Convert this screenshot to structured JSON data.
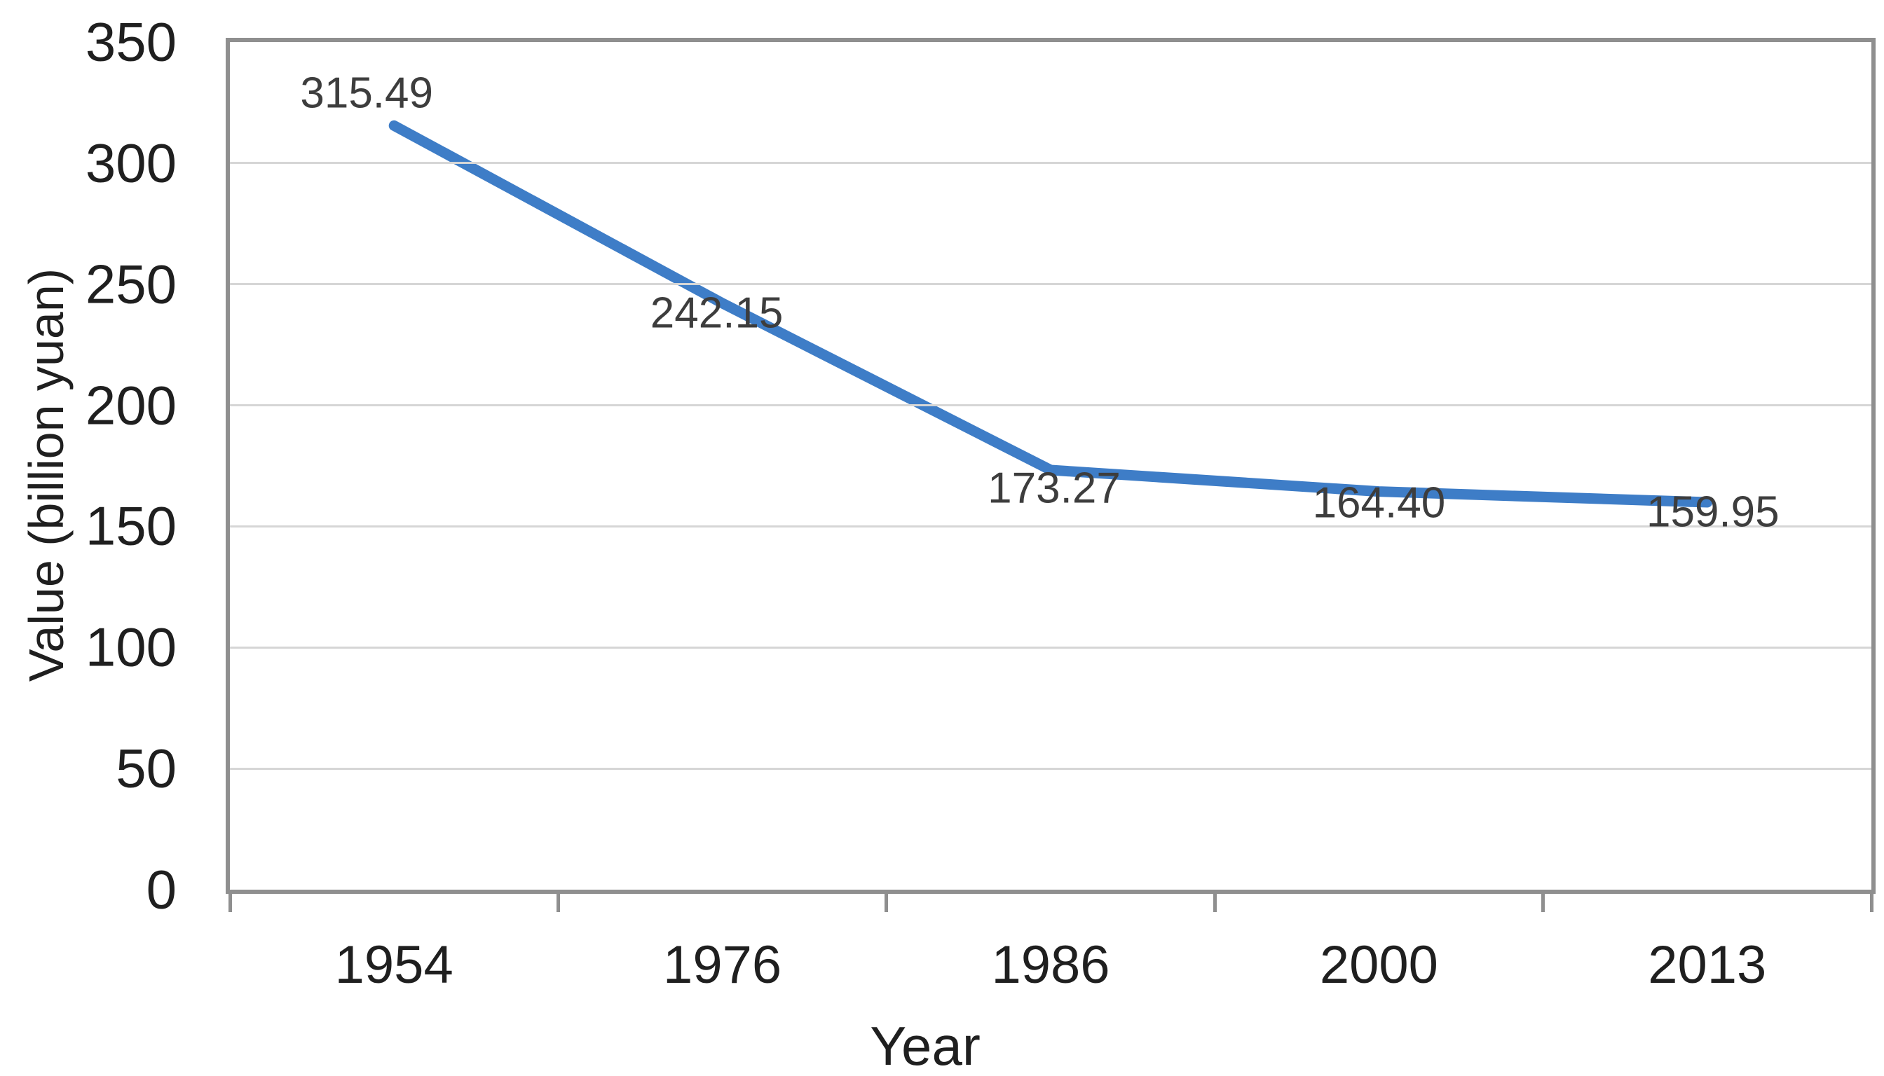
{
  "chart_data": {
    "type": "line",
    "title": "",
    "categories": [
      "1954",
      "1976",
      "1986",
      "2000",
      "2013"
    ],
    "values": [
      315.49,
      242.15,
      173.27,
      164.4,
      159.95
    ],
    "data_labels": [
      "315.49",
      "242.15",
      "173.27",
      "164.40",
      "159.95"
    ],
    "xlabel": "Year",
    "ylabel": "Value (billion yuan)",
    "ylim": [
      0,
      350
    ],
    "y_ticks": [
      0,
      50,
      100,
      150,
      200,
      250,
      300,
      350
    ],
    "grid": "horizontal-only",
    "legend_position": "none",
    "series_name": "Value",
    "colors": {
      "series_line": "#3e7dc7",
      "gridline": "#d6d6d6",
      "axis_border": "#8f8f8f",
      "tick_text": "#1f1f1f",
      "data_label_text": "#3d3d3d",
      "background": "#ffffff"
    }
  }
}
